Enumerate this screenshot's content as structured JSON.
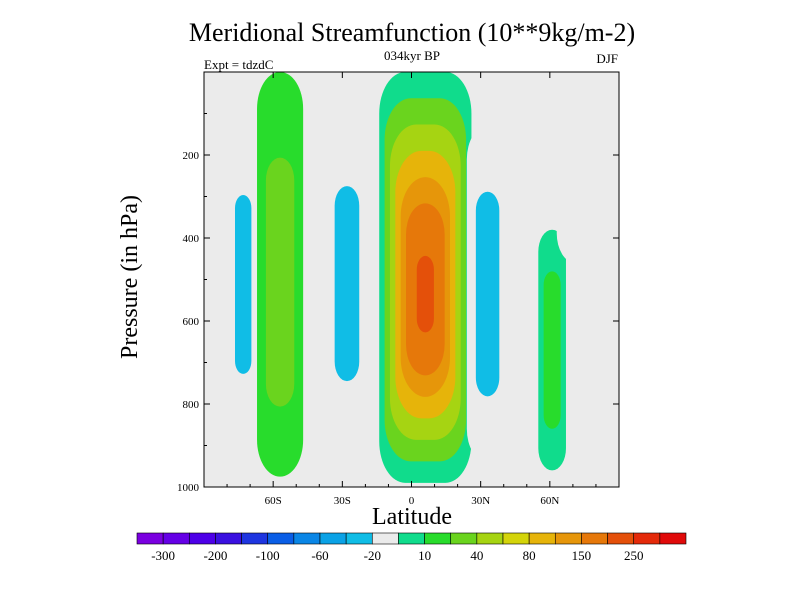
{
  "chart_data": {
    "type": "heatmap",
    "title": "Meridional Streamfunction (10**9kg/m-2)",
    "subtitle_center": "034kyr BP",
    "subtitle_left": "Expt = tdzdC",
    "subtitle_right": "DJF",
    "xlabel": "Latitude",
    "ylabel": "Pressure (in hPa)",
    "xlim": [
      -90,
      90
    ],
    "ylim": [
      0,
      1000
    ],
    "y_inverted": true,
    "x_ticks": [
      {
        "value": -60,
        "label": "60S"
      },
      {
        "value": -30,
        "label": "30S"
      },
      {
        "value": 0,
        "label": "0"
      },
      {
        "value": 30,
        "label": "30N"
      },
      {
        "value": 60,
        "label": "60N"
      }
    ],
    "y_ticks": [
      {
        "value": 200,
        "label": "200"
      },
      {
        "value": 400,
        "label": "400"
      },
      {
        "value": 600,
        "label": "600"
      },
      {
        "value": 800,
        "label": "800"
      },
      {
        "value": 1000,
        "label": "1000"
      }
    ],
    "background_color": "#ebebeb",
    "colorbar": {
      "colors": [
        "#7a00e0",
        "#6500e6",
        "#4d00e8",
        "#3a10e0",
        "#1e35e0",
        "#0a5ee6",
        "#0a86e6",
        "#0aa2e6",
        "#10bde6",
        "#ebebeb",
        "#10dc8c",
        "#28dc2c",
        "#6ad41e",
        "#a6d412",
        "#d4d40a",
        "#e6b40a",
        "#e6960a",
        "#e6780a",
        "#e4500a",
        "#e42a0a",
        "#e00a0a"
      ],
      "labels": [
        "-300",
        "-200",
        "-100",
        "-60",
        "-20",
        "10",
        "40",
        "80",
        "150",
        "250"
      ],
      "label_boundaries": [
        1,
        3,
        5,
        7,
        9,
        11,
        13,
        15,
        17,
        19
      ]
    },
    "contour_fields": [
      {
        "name": "sh-polar-cell",
        "level_values": [
          -8,
          -14,
          -22
        ],
        "lat": -73,
        "lat_width": 8,
        "p_top": 0,
        "p_bottom": 970
      },
      {
        "name": "sh-mid-lat-cell",
        "level_values": [
          15,
          25
        ],
        "lat": -57,
        "lat_width": 10,
        "p_top": 0,
        "p_bottom": 975
      },
      {
        "name": "sh-subtropical-cell",
        "level_values": [
          -8,
          -14,
          -22
        ],
        "lat": -28,
        "lat_width": 12,
        "p_top": 40,
        "p_bottom": 980
      },
      {
        "name": "hadley-cell",
        "level_values": [
          10,
          40,
          60,
          90,
          120,
          160,
          200,
          250
        ],
        "lat": 6,
        "lat_width": 20,
        "p_top": 0,
        "p_bottom": 990
      },
      {
        "name": "nh-ferrel-cell",
        "level_values": [
          -8,
          -14,
          -22,
          -35
        ],
        "lat": 33,
        "lat_width": 9,
        "p_top": 130,
        "p_bottom": 940
      },
      {
        "name": "nh-polar-front-cell",
        "level_values": [
          10,
          15
        ],
        "lat": 61,
        "lat_width": 6,
        "p_top": 380,
        "p_bottom": 960
      },
      {
        "name": "nh-polar-cell",
        "level_values": [
          -8,
          -14
        ],
        "lat": 71,
        "lat_width": 8,
        "p_top": 0,
        "p_bottom": 460
      }
    ]
  }
}
